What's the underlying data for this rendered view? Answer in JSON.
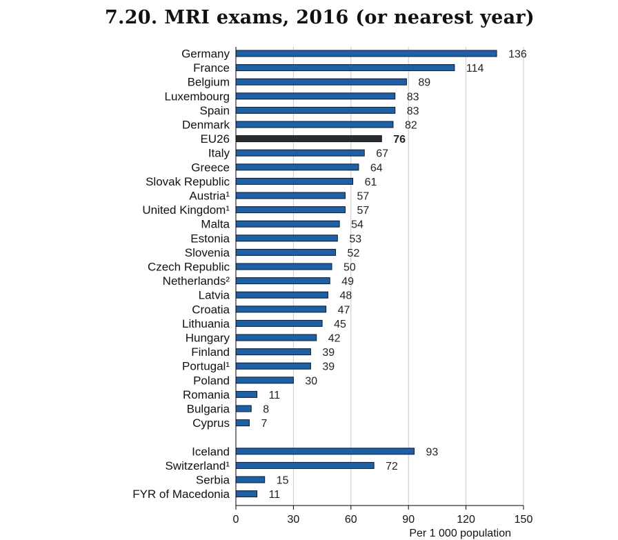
{
  "chart_data": {
    "type": "bar",
    "orientation": "horizontal",
    "title": "7.20. MRI exams, 2016 (or nearest year)",
    "xlabel": "Per 1 000 population",
    "xlim": [
      0,
      150
    ],
    "xticks": [
      0,
      30,
      60,
      90,
      120,
      150
    ],
    "grid": true,
    "colors": {
      "bar": "#1f5fa3",
      "highlight": "#2b2b2b",
      "border": "#0a1a33",
      "grid": "#c8c8c8",
      "axis": "#000000"
    },
    "groups": [
      {
        "categories": [
          "Germany",
          "France",
          "Belgium",
          "Luxembourg",
          "Spain",
          "Denmark",
          "EU26",
          "Italy",
          "Greece",
          "Slovak Republic",
          "Austria¹",
          "United Kingdom¹",
          "Malta",
          "Estonia",
          "Slovenia",
          "Czech Republic",
          "Netherlands²",
          "Latvia",
          "Croatia",
          "Lithuania",
          "Hungary",
          "Finland",
          "Portugal¹",
          "Poland",
          "Romania",
          "Bulgaria",
          "Cyprus"
        ],
        "values": [
          136,
          114,
          89,
          83,
          83,
          82,
          76,
          67,
          64,
          61,
          57,
          57,
          54,
          53,
          52,
          50,
          49,
          48,
          47,
          45,
          42,
          39,
          39,
          30,
          11,
          8,
          7
        ]
      },
      {
        "categories": [
          "Iceland",
          "Switzerland¹",
          "Serbia",
          "FYR of Macedonia"
        ],
        "values": [
          93,
          72,
          15,
          11
        ]
      }
    ],
    "highlight": "EU26"
  }
}
